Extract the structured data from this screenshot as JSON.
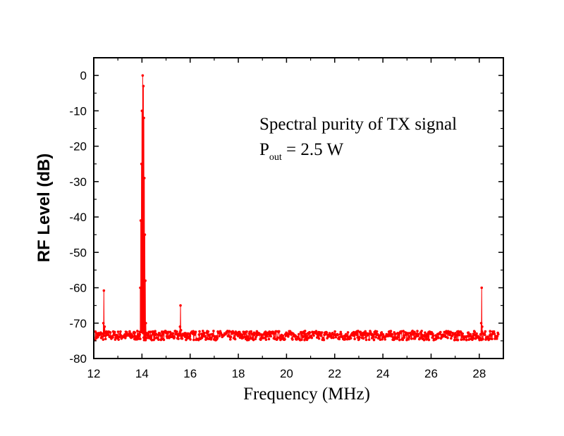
{
  "chart_data": {
    "type": "line",
    "title": "",
    "xlabel": "Frequency (MHz)",
    "ylabel": "RF Level (dB)",
    "xlim": [
      12,
      29
    ],
    "ylim": [
      -80,
      5
    ],
    "x_ticks": [
      12,
      14,
      16,
      18,
      20,
      22,
      24,
      26,
      28
    ],
    "x_tick_labels": [
      "12",
      "14",
      "16",
      "18",
      "20",
      "22",
      "24",
      "26",
      "28"
    ],
    "y_ticks": [
      0,
      -10,
      -20,
      -30,
      -40,
      -50,
      -60,
      -70,
      -80
    ],
    "y_tick_labels": [
      "0",
      "-10",
      "-20",
      "-30",
      "-40",
      "-50",
      "-60",
      "-70",
      "-80"
    ],
    "annotation": {
      "line1": "Spectral purity of TX signal",
      "line2_main": "P",
      "line2_sub": "out",
      "line2_rest": " = 2.5 W"
    },
    "noise_floor_db": -73.5,
    "x_start": 12.05,
    "x_end": 28.8,
    "x_step": 0.02,
    "color": "#ff0000",
    "series": [
      {
        "values_note": "",
        "peaks": [
          {
            "x": 12.42,
            "y": -60.8
          },
          {
            "x": 13.95,
            "y": -41.0
          },
          {
            "x": 13.98,
            "y": -25.0
          },
          {
            "x": 14.0,
            "y": -10.0
          },
          {
            "x": 14.03,
            "y": 0.0
          },
          {
            "x": 14.06,
            "y": -3.0
          },
          {
            "x": 14.08,
            "y": -12.0
          },
          {
            "x": 14.1,
            "y": -29.0
          },
          {
            "x": 14.12,
            "y": -45.0
          },
          {
            "x": 14.14,
            "y": -58.0
          },
          {
            "x": 15.6,
            "y": -65.0
          },
          {
            "x": 28.1,
            "y": -60.0
          }
        ]
      }
    ]
  }
}
